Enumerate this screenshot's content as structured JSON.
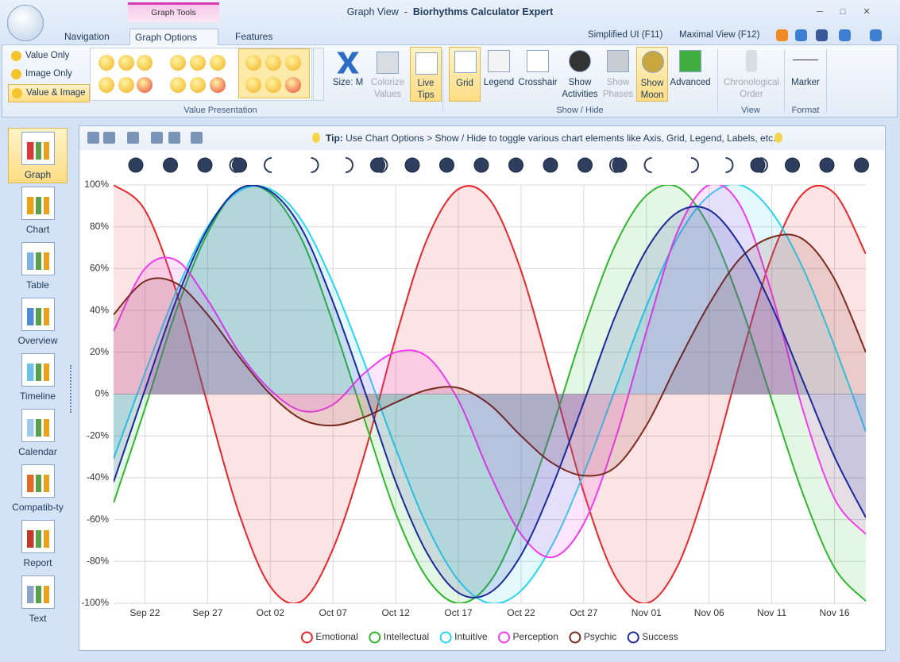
{
  "window": {
    "view": "Graph View",
    "separator": "-",
    "app": "Biorhythms Calculator Expert"
  },
  "tabs": {
    "context": "Graph Tools",
    "items": [
      "Navigation",
      "Graph Options",
      "Features"
    ],
    "right": [
      "Simplified UI (F11)",
      "Maximal View (F12)"
    ]
  },
  "ribbon": {
    "value_presentation": {
      "label": "Value Presentation",
      "modes": [
        "Value Only",
        "Image Only",
        "Value & Image"
      ],
      "buttons": [
        "Size: M",
        "Colorize Values",
        "Live Tips"
      ]
    },
    "show_hide": {
      "label": "Show / Hide",
      "buttons": [
        "Grid",
        "Legend",
        "Crosshair",
        "Show Activities",
        "Show Phases",
        "Show Moon",
        "Advanced"
      ]
    },
    "view": {
      "label": "View",
      "buttons": [
        "Chronological Order"
      ]
    },
    "format": {
      "label": "Format",
      "buttons": [
        "Marker"
      ]
    }
  },
  "sidebar": {
    "items": [
      "Graph",
      "Chart",
      "Table",
      "Overview",
      "Timeline",
      "Calendar",
      "Compatib-ty",
      "Report",
      "Text"
    ]
  },
  "tip": {
    "label": "Tip:",
    "text": "Use Chart Options > Show / Hide to toggle various chart elements like Axis, Grid, Legend, Labels, etc."
  },
  "chart_data": {
    "type": "line",
    "area": true,
    "grid": true,
    "legend": "bottom",
    "categories": [
      null,
      "Sep 22",
      null,
      "Sep 27",
      null,
      "Oct 02",
      null,
      "Oct 07",
      null,
      "Oct 12",
      null,
      "Oct 17",
      null,
      "Oct 22",
      null,
      "Oct 27",
      null,
      "Nov 01",
      null,
      "Nov 06",
      null,
      "Nov 11",
      null,
      "Nov 16",
      null
    ],
    "ylim": [
      -100,
      100
    ],
    "yticks": [
      {
        "value": -100,
        "label": "-100%"
      },
      {
        "value": -80,
        "label": "-80%"
      },
      {
        "value": -60,
        "label": "-60%"
      },
      {
        "value": -40,
        "label": "-40%"
      },
      {
        "value": -20,
        "label": "-20%"
      },
      {
        "value": 0,
        "label": "0%"
      },
      {
        "value": 20,
        "label": "20%"
      },
      {
        "value": 40,
        "label": "40%"
      },
      {
        "value": 60,
        "label": "60%"
      },
      {
        "value": 80,
        "label": "80%"
      },
      {
        "value": 100,
        "label": "100%"
      }
    ],
    "series": [
      {
        "name": "Emotional",
        "color": "#e8262b",
        "values": [
          100,
          88,
          49,
          -5,
          -57,
          -92,
          -99,
          -74,
          -29,
          27,
          74,
          98,
          93,
          59,
          7,
          -47,
          -87,
          -100,
          -82,
          -39,
          16,
          66,
          96,
          96,
          67
        ]
      },
      {
        "name": "Intellectual",
        "color": "#2db82d",
        "values": [
          -52,
          -7,
          40,
          77,
          98,
          96,
          74,
          34,
          -12,
          -57,
          -88,
          -100,
          -90,
          -59,
          -16,
          31,
          71,
          95,
          99,
          80,
          43,
          -3,
          -48,
          -83,
          -99
        ]
      },
      {
        "name": "Intuitive",
        "color": "#2ad4ee",
        "values": [
          -31,
          10,
          49,
          80,
          97,
          98,
          83,
          53,
          15,
          -26,
          -63,
          -89,
          -100,
          -94,
          -72,
          -38,
          2,
          42,
          75,
          95,
          100,
          87,
          60,
          23,
          -18
        ]
      },
      {
        "name": "Perception",
        "color": "#f03cf0",
        "values": [
          30,
          60,
          64,
          45,
          20,
          2,
          -8,
          -5,
          10,
          20,
          18,
          -3,
          -38,
          -67,
          -78,
          -62,
          -22,
          30,
          78,
          100,
          90,
          48,
          -8,
          -50,
          -67
        ]
      },
      {
        "name": "Psychic",
        "color": "#7a2a1e",
        "values": [
          38,
          54,
          53,
          38,
          18,
          0,
          -12,
          -15,
          -11,
          -4,
          2,
          3,
          -5,
          -20,
          -33,
          -39,
          -35,
          -15,
          15,
          43,
          65,
          75,
          74,
          55,
          20
        ]
      },
      {
        "name": "Success",
        "color": "#1a2a9c",
        "values": [
          -42,
          2,
          45,
          79,
          98,
          97,
          79,
          44,
          2,
          -42,
          -76,
          -95,
          -95,
          -77,
          -44,
          -4,
          37,
          69,
          87,
          88,
          71,
          42,
          6,
          -30,
          -59
        ]
      }
    ]
  }
}
